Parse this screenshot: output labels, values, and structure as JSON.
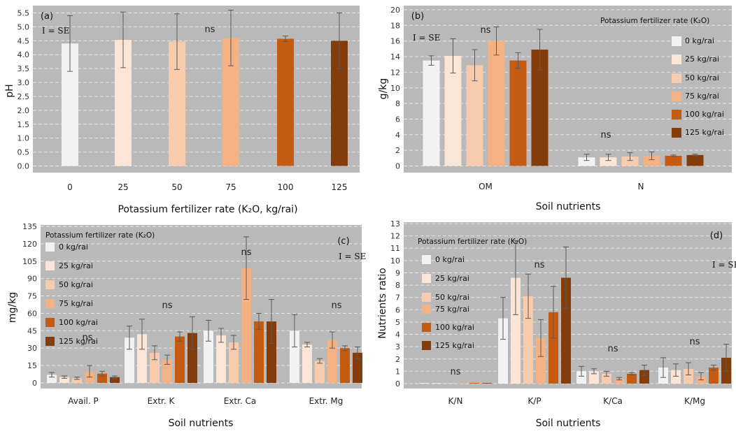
{
  "chart_data": [
    {
      "type": "bar",
      "label": "(a)",
      "se_note": "I = SE",
      "annotation": "ns",
      "categories": [
        "0",
        "25",
        "50",
        "75",
        "100",
        "125"
      ],
      "values": [
        4.4,
        4.53,
        4.47,
        4.6,
        4.57,
        4.5
      ],
      "errors": [
        1.0,
        1.0,
        1.0,
        1.0,
        0.1,
        1.0
      ],
      "ylim": [
        0,
        5.5
      ],
      "yticks": [
        "0.0",
        "0.5",
        "1.0",
        "1.5",
        "2.0",
        "2.5",
        "3.0",
        "3.5",
        "4.0",
        "4.5",
        "5.0",
        "5.5"
      ],
      "ylabel": "pH",
      "xlabel": "Potassium fertilizer rate (K₂O, kg/rai)",
      "grid": true
    },
    {
      "type": "bar",
      "label": "(b)",
      "se_note": "I = SE",
      "categories": [
        "OM",
        "N"
      ],
      "annotations": [
        "ns",
        "ns"
      ],
      "ylim": [
        0,
        20
      ],
      "yticks": [
        "0",
        "2",
        "4",
        "6",
        "8",
        "10",
        "12",
        "14",
        "16",
        "18",
        "20"
      ],
      "ylabel": "g/kg",
      "xlabel": "Soil nutrients",
      "legend_title": "Potassium fertilizer rate (K₂O)",
      "legend_position": "right",
      "series": [
        {
          "name": "0  kg/rai",
          "values": [
            13.5,
            1.1
          ],
          "errors": [
            0.6,
            0.4
          ]
        },
        {
          "name": "25 kg/rai",
          "values": [
            14.1,
            1.1
          ],
          "errors": [
            2.2,
            0.4
          ]
        },
        {
          "name": "50 kg/rai",
          "values": [
            12.9,
            1.2
          ],
          "errors": [
            2.0,
            0.5
          ]
        },
        {
          "name": "75 kg/rai",
          "values": [
            16.0,
            1.3
          ],
          "errors": [
            1.8,
            0.5
          ]
        },
        {
          "name": "100 kg/rai",
          "values": [
            13.5,
            1.3
          ],
          "errors": [
            1.0,
            0.1
          ]
        },
        {
          "name": "125 kg/rai",
          "values": [
            14.9,
            1.4
          ],
          "errors": [
            2.6,
            0.1
          ]
        }
      ],
      "grid": true
    },
    {
      "type": "bar",
      "label": "(c)",
      "se_note": "I = SE",
      "categories": [
        "Avail. P",
        "Extr. K",
        "Extr. Ca",
        "Extr. Mg"
      ],
      "annotations": [
        "ns",
        "ns",
        "ns",
        "ns"
      ],
      "ylim": [
        0,
        135
      ],
      "yticks": [
        "0",
        "15",
        "30",
        "45",
        "60",
        "75",
        "90",
        "105",
        "120",
        "135"
      ],
      "ylabel": "mg/kg",
      "xlabel": "Soil nutrients",
      "legend_title": "Potassium fertilizer rate (K₂O)",
      "legend_position": "top-left",
      "series": [
        {
          "name": "0  kg/rai",
          "values": [
            7,
            39,
            45,
            45
          ],
          "errors": [
            2,
            10,
            9,
            14
          ]
        },
        {
          "name": "25 kg/rai",
          "values": [
            5,
            42,
            41,
            33
          ],
          "errors": [
            1,
            13,
            6,
            2
          ]
        },
        {
          "name": "50 kg/rai",
          "values": [
            4,
            26,
            35,
            19
          ],
          "errors": [
            1,
            6,
            6,
            2
          ]
        },
        {
          "name": "75 kg/rai",
          "values": [
            10,
            20,
            99,
            37
          ],
          "errors": [
            5,
            4,
            27,
            7
          ]
        },
        {
          "name": "100 kg/rai",
          "values": [
            8,
            40,
            53,
            30
          ],
          "errors": [
            2,
            4,
            7,
            2
          ]
        },
        {
          "name": "125 kg/rai",
          "values": [
            5,
            43,
            53,
            26
          ],
          "errors": [
            1,
            14,
            19,
            5
          ]
        }
      ],
      "grid": true
    },
    {
      "type": "bar",
      "label": "(d)",
      "se_note": "I = SE",
      "categories": [
        "K/N",
        "K/P",
        "K/Ca",
        "K/Mg"
      ],
      "annotations": [
        "ns",
        "ns",
        "ns",
        "ns"
      ],
      "ylim": [
        0,
        13
      ],
      "yticks": [
        "0",
        "1",
        "2",
        "3",
        "4",
        "5",
        "6",
        "7",
        "8",
        "9",
        "10",
        "11",
        "12",
        "13"
      ],
      "ylabel": "Nutrients ratio",
      "xlabel": "Soil nutrients",
      "legend_title": "Potassium fertilizer rate (K₂O)",
      "legend_position": "top-left",
      "series": [
        {
          "name": "0  kg/rai",
          "values": [
            0.05,
            5.3,
            1.0,
            1.3
          ],
          "errors": [
            0,
            1.7,
            0.4,
            0.8
          ]
        },
        {
          "name": "25 kg/rai",
          "values": [
            0.05,
            8.6,
            1.0,
            1.1
          ],
          "errors": [
            0,
            3.0,
            0.2,
            0.5
          ]
        },
        {
          "name": "50 kg/rai",
          "values": [
            0.05,
            7.1,
            0.8,
            1.2
          ],
          "errors": [
            0,
            1.8,
            0.2,
            0.5
          ]
        },
        {
          "name": "75 kg/rai",
          "values": [
            0.05,
            3.7,
            0.4,
            0.6
          ],
          "errors": [
            0,
            1.5,
            0.1,
            0.3
          ]
        },
        {
          "name": "100 kg/rai",
          "values": [
            0.05,
            5.8,
            0.8,
            1.3
          ],
          "errors": [
            0,
            2.1,
            0.1,
            0.2
          ]
        },
        {
          "name": "125 kg/rai",
          "values": [
            0.05,
            8.6,
            1.1,
            2.1
          ],
          "errors": [
            0,
            2.5,
            0.4,
            1.1
          ]
        }
      ],
      "grid": true
    }
  ],
  "colors": {
    "plot_bg": "#b9b9b9",
    "grid": "#e4e4e4",
    "error_bar": "#5a5a5a",
    "series": [
      "#f2f2f2",
      "#fbe5d6",
      "#f8cbad",
      "#f4b183",
      "#c55a11",
      "#843c0c"
    ]
  }
}
